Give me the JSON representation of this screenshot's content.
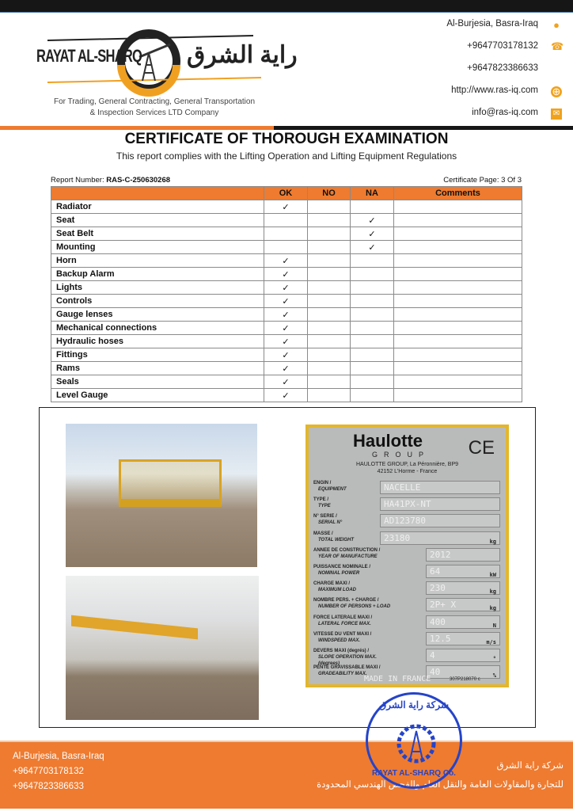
{
  "header": {
    "brand_en": "RAYAT AL-SHARQ",
    "brand_ar": "راية الشرق",
    "tagline_line1": "For Trading, General Contracting, General Transportation",
    "tagline_line2": "& Inspection Services LTD Company",
    "contacts": [
      {
        "text": "Al-Burjesia, Basra-Iraq",
        "icon": "location-pin-icon"
      },
      {
        "text": "+9647703178132",
        "icon": "telephone-icon"
      },
      {
        "text": "+9647823386633",
        "icon": ""
      },
      {
        "text": "http://www.ras-iq.com",
        "icon": "globe-icon"
      },
      {
        "text": "info@ras-iq.com",
        "icon": "envelope-icon"
      }
    ]
  },
  "title": "CERTIFICATE OF THOROUGH EXAMINATION",
  "subtitle": "This report complies with the Lifting Operation and Lifting Equipment Regulations",
  "report": {
    "label": "Report Number: ",
    "number": "RAS-C-250630268",
    "page": "Certificate Page: 3 Of 3"
  },
  "table": {
    "columns": [
      "",
      "OK",
      "NO",
      "NA",
      "Comments"
    ],
    "check": "✓",
    "rows": [
      {
        "item": "Radiator",
        "status": "OK"
      },
      {
        "item": "Seat",
        "status": "NA"
      },
      {
        "item": "Seat Belt",
        "status": "NA"
      },
      {
        "item": "Mounting",
        "status": "NA"
      },
      {
        "item": "Horn",
        "status": "OK"
      },
      {
        "item": "Backup Alarm",
        "status": "OK"
      },
      {
        "item": "Lights",
        "status": "OK"
      },
      {
        "item": "Controls",
        "status": "OK"
      },
      {
        "item": "Gauge lenses",
        "status": "OK"
      },
      {
        "item": "Mechanical connections",
        "status": "OK"
      },
      {
        "item": "Hydraulic hoses",
        "status": "OK"
      },
      {
        "item": "Fittings",
        "status": "OK"
      },
      {
        "item": "Rams",
        "status": "OK"
      },
      {
        "item": "Seals",
        "status": "OK"
      },
      {
        "item": "Level Gauge",
        "status": "OK"
      }
    ]
  },
  "plate": {
    "brand": "Haulotte",
    "group": "GROUP",
    "ce": "CE",
    "address1": "HAULOTTE GROUP, La Péronnière, BP9",
    "address2": "42152 L'Horme - France",
    "fields": [
      {
        "label1": "ENGIN /",
        "label2": "EQUIPMENT",
        "value": "NACELLE",
        "unit": "",
        "wide": true
      },
      {
        "label1": "TYPE /",
        "label2": "TYPE",
        "value": "HA41PX-NT",
        "unit": "",
        "wide": true
      },
      {
        "label1": "N° SERIE /",
        "label2": "SERIAL N°",
        "value": "AD123780",
        "unit": "",
        "wide": true
      },
      {
        "label1": "MASSE /",
        "label2": "TOTAL WEIGHT",
        "value": "23180",
        "unit": "kg",
        "wide": true
      },
      {
        "label1": "ANNEE DE CONSTRUCTION /",
        "label2": "YEAR OF MANUFACTURE",
        "value": "2012",
        "unit": "",
        "wide": false
      },
      {
        "label1": "PUISSANCE NOMINALE /",
        "label2": "NOMINAL POWER",
        "value": "64",
        "unit": "kW",
        "wide": false
      },
      {
        "label1": "CHARGE MAXI /",
        "label2": "MAXIMUM LOAD",
        "value": "230",
        "unit": "kg",
        "wide": false
      },
      {
        "label1": "NOMBRE PERS. + CHARGE /",
        "label2": "NUMBER OF PERSONS + LOAD",
        "value": "2P+   X",
        "unit": "kg",
        "wide": false
      },
      {
        "label1": "FORCE LATERALE MAXI /",
        "label2": "LATERAL FORCE MAX.",
        "value": "400",
        "unit": "N",
        "wide": false
      },
      {
        "label1": "VITESSE DU VENT MAXI /",
        "label2": "WINDSPEED MAX.",
        "value": "12.5",
        "unit": "m/s",
        "wide": false
      },
      {
        "label1": "DEVERS MAXI (degrés) /",
        "label2": "SLOPE OPERATION MAX. (degrees)",
        "value": "4",
        "unit": "°",
        "wide": false
      },
      {
        "label1": "PENTE GRAVISSABLE MAXI /",
        "label2": "GRADEABILITY MAX.",
        "value": "40",
        "unit": "%",
        "wide": false
      }
    ],
    "made_in": "MADE IN FRANCE",
    "code": "307P218070 c"
  },
  "stamp": {
    "top": "شركة راية الشرق",
    "bottom": "RAYAT AL-SHARQ Co."
  },
  "footer": {
    "address": "Al-Burjesia, Basra-Iraq",
    "phone1": "+9647703178132",
    "phone2": "+9647823386633",
    "ar_line1": "شركة راية الشرق",
    "ar_line2": "للتجارة والمقاولات العامة والنقل العام والفحص الهندسي المحدودة"
  },
  "colors": {
    "accent": "#ee7b30",
    "dark": "#161616",
    "stamp": "#2544c9",
    "icon": "#f0a21d"
  }
}
